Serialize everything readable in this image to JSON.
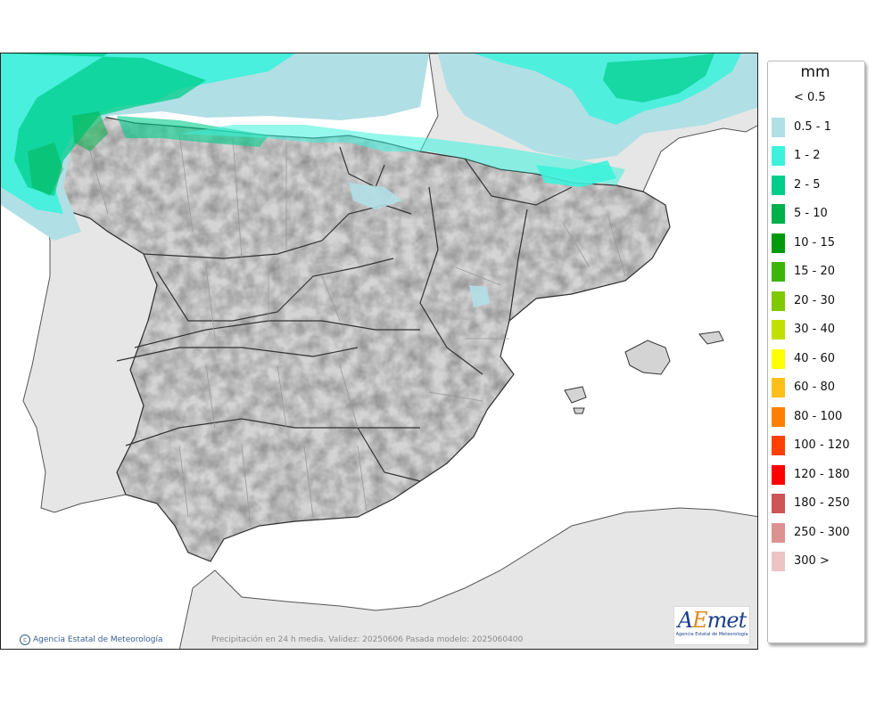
{
  "legend": {
    "unit": "mm",
    "items": [
      {
        "label": "< 0.5",
        "color": "#ffffff"
      },
      {
        "label": "0.5 - 1",
        "color": "#b0dfe5"
      },
      {
        "label": "1 - 2",
        "color": "#3df2dc"
      },
      {
        "label": "2 - 5",
        "color": "#00cd8a"
      },
      {
        "label": "5 - 10",
        "color": "#00b04b"
      },
      {
        "label": "10 - 15",
        "color": "#009a0c"
      },
      {
        "label": "15 - 20",
        "color": "#3cb40a"
      },
      {
        "label": "20 - 30",
        "color": "#80c800"
      },
      {
        "label": "30 - 40",
        "color": "#c2e000"
      },
      {
        "label": "40 - 60",
        "color": "#ffff00"
      },
      {
        "label": "60 - 80",
        "color": "#ffbf1a"
      },
      {
        "label": "80 - 100",
        "color": "#ff8000"
      },
      {
        "label": "100 - 120",
        "color": "#ff4000"
      },
      {
        "label": "120 - 180",
        "color": "#ff0000"
      },
      {
        "label": "180 - 250",
        "color": "#cd5555"
      },
      {
        "label": "250 - 300",
        "color": "#dd9292"
      },
      {
        "label": "300 >",
        "color": "#ecc4c4"
      }
    ]
  },
  "footer": {
    "credit": "Agencia Estatal de Meteorología",
    "caption": "Precipitación en 24 h media. Validez: 20250606 Pasada modelo: 2025060400"
  },
  "logo": {
    "word_prefix": "A",
    "word_accent": "E",
    "word_suffix": "met",
    "subtitle": "Agencia Estatal de Meteorología"
  },
  "colors": {
    "sea": "#ffffff",
    "land": "#d4d4d4",
    "foreign_land": "#e6e6e6",
    "border": "#333333",
    "province_line": "#9a9a9a"
  }
}
